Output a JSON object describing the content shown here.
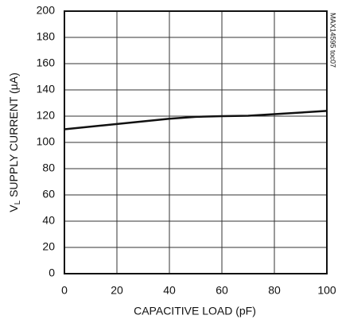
{
  "chart_data": {
    "type": "line",
    "x_label": "CAPACITIVE LOAD (pF)",
    "y_label": [
      "V",
      "L",
      " SUPPLY CURRENT (µA)"
    ],
    "note": "MAX14595 toc07",
    "x": [
      0,
      20,
      40,
      50,
      60,
      70,
      80,
      100
    ],
    "series": [
      {
        "color": "#111111",
        "values": [
          110,
          114,
          118,
          119.5,
          120,
          120.3,
          121.5,
          124
        ]
      }
    ],
    "xlim": [
      0,
      100
    ],
    "xticks": [
      0,
      20,
      40,
      60,
      80,
      100
    ],
    "ylim": [
      0,
      200
    ],
    "yticks": [
      0,
      20,
      40,
      60,
      80,
      100,
      120,
      140,
      160,
      180,
      200
    ],
    "grid": true
  }
}
